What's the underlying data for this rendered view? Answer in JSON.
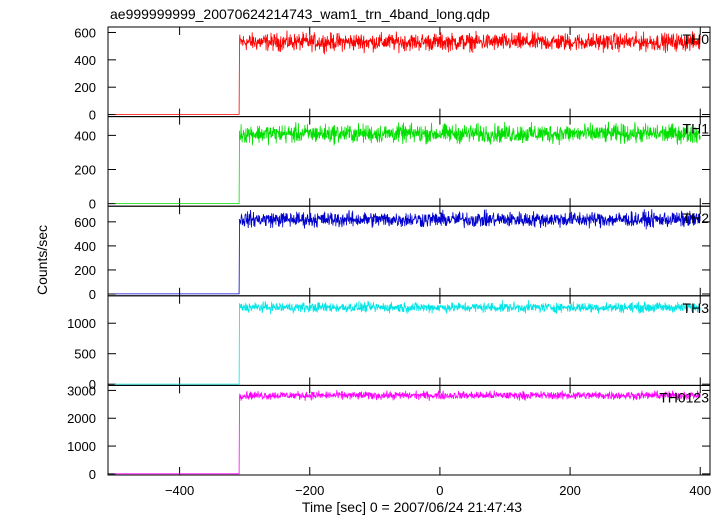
{
  "chart_data": {
    "type": "line",
    "title": "ae999999999_20070624214743_wam1_trn_4band_long.qdp",
    "xlabel": "Time [sec] 0 = 2007/06/24 21:47:43",
    "ylabel": "Counts/sec",
    "xlim": [
      -510,
      415
    ],
    "x_ticks": [
      -400,
      -200,
      0,
      200,
      400
    ],
    "x_tick_labels": [
      "−400",
      "−200",
      "0",
      "200",
      "400"
    ],
    "onset_time": -308,
    "start_time": -500,
    "end_time": 400,
    "grid": false,
    "series": [
      {
        "name": "TH0",
        "color": "#ff0000",
        "pre_level": 1,
        "post_level": 530,
        "noise_amplitude": 70,
        "ylim": [
          -15,
          640
        ],
        "y_ticks": [
          0,
          200,
          400,
          600
        ],
        "y_tick_labels": [
          "0",
          "200",
          "400",
          "600"
        ]
      },
      {
        "name": "TH1",
        "color": "#00e000",
        "pre_level": 1,
        "post_level": 410,
        "noise_amplitude": 60,
        "ylim": [
          -15,
          510
        ],
        "y_ticks": [
          0,
          200,
          400
        ],
        "y_tick_labels": [
          "0",
          "200",
          "400"
        ]
      },
      {
        "name": "TH2",
        "color": "#0000cc",
        "pre_level": 1,
        "post_level": 620,
        "noise_amplitude": 70,
        "ylim": [
          -15,
          730
        ],
        "y_ticks": [
          0,
          200,
          400,
          600
        ],
        "y_tick_labels": [
          "0",
          "200",
          "400",
          "600"
        ]
      },
      {
        "name": "TH3",
        "color": "#00e5e5",
        "pre_level": 1,
        "post_level": 1260,
        "noise_amplitude": 90,
        "ylim": [
          -20,
          1450
        ],
        "y_ticks": [
          0,
          500,
          1000
        ],
        "y_tick_labels": [
          "0",
          "500",
          "1000"
        ]
      },
      {
        "name": "TH0123",
        "color": "#ff00ff",
        "pre_level": 2,
        "post_level": 2820,
        "noise_amplitude": 160,
        "ylim": [
          -40,
          3180
        ],
        "y_ticks": [
          0,
          1000,
          2000,
          3000
        ],
        "y_tick_labels": [
          "0",
          "1000",
          "2000",
          "3000"
        ]
      }
    ]
  }
}
